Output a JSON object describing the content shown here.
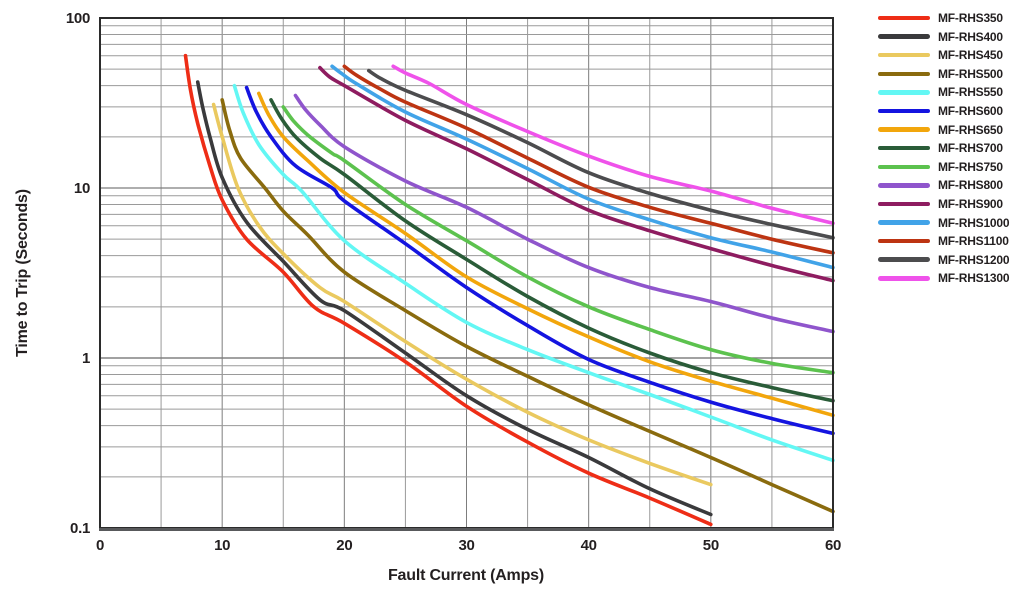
{
  "colors": {
    "background": "#ffffff",
    "grid_minor": "#9a9a9a",
    "grid_major": "#7d7d7d",
    "border": "#2b2b2b",
    "baseline": "#58595b",
    "text": "#231f20"
  },
  "chart_data": {
    "type": "line",
    "title": "",
    "xlabel": "Fault Current (Amps)",
    "ylabel": "Time to Trip (Seconds)",
    "xlim": [
      0,
      60
    ],
    "ylim": [
      0.1,
      100
    ],
    "x_scale": "linear",
    "y_scale": "log",
    "grid": true,
    "x_minor_step": 5,
    "x_major_ticks": [
      0,
      10,
      20,
      30,
      40,
      50,
      60
    ],
    "x_tick_labels": [
      "0",
      "10",
      "20",
      "30",
      "40",
      "50",
      "60"
    ],
    "y_major_ticks": [
      100,
      10,
      1,
      0.1
    ],
    "y_tick_labels": [
      "100",
      "10",
      "1",
      "0.1"
    ],
    "legend_position": "right-outside",
    "series": [
      {
        "name": "MF-RHS350",
        "color": "#ee2d16",
        "points": [
          [
            7,
            60
          ],
          [
            7.4,
            38
          ],
          [
            8,
            24
          ],
          [
            9,
            13.5
          ],
          [
            10,
            8.5
          ],
          [
            12,
            5.0
          ],
          [
            15,
            3.2
          ],
          [
            17.5,
            2.0
          ],
          [
            20,
            1.6
          ],
          [
            25,
            0.95
          ],
          [
            30,
            0.52
          ],
          [
            35,
            0.32
          ],
          [
            40,
            0.21
          ],
          [
            45,
            0.15
          ],
          [
            50,
            0.105
          ]
        ]
      },
      {
        "name": "MF-RHS400",
        "color": "#3a3a3c",
        "points": [
          [
            8,
            42
          ],
          [
            8.4,
            30
          ],
          [
            9,
            20
          ],
          [
            10,
            11.5
          ],
          [
            12,
            6.3
          ],
          [
            15,
            3.7
          ],
          [
            18,
            2.2
          ],
          [
            20,
            1.9
          ],
          [
            25,
            1.07
          ],
          [
            30,
            0.6
          ],
          [
            35,
            0.38
          ],
          [
            40,
            0.26
          ],
          [
            45,
            0.17
          ],
          [
            50,
            0.12
          ]
        ]
      },
      {
        "name": "MF-RHS450",
        "color": "#eac95f",
        "points": [
          [
            9.3,
            31
          ],
          [
            10,
            20
          ],
          [
            11.3,
            10
          ],
          [
            13,
            6
          ],
          [
            15,
            4.1
          ],
          [
            18,
            2.6
          ],
          [
            20,
            2.15
          ],
          [
            25,
            1.25
          ],
          [
            30,
            0.75
          ],
          [
            35,
            0.48
          ],
          [
            40,
            0.33
          ],
          [
            45,
            0.24
          ],
          [
            50,
            0.18
          ]
        ]
      },
      {
        "name": "MF-RHS500",
        "color": "#8a6b0e",
        "points": [
          [
            10,
            33
          ],
          [
            10.6,
            22
          ],
          [
            11.5,
            15
          ],
          [
            13.5,
            10
          ],
          [
            15,
            7.3
          ],
          [
            17,
            5.3
          ],
          [
            20,
            3.2
          ],
          [
            25,
            1.9
          ],
          [
            30,
            1.17
          ],
          [
            35,
            0.78
          ],
          [
            40,
            0.53
          ],
          [
            45,
            0.37
          ],
          [
            50,
            0.26
          ],
          [
            55,
            0.18
          ],
          [
            60,
            0.125
          ]
        ]
      },
      {
        "name": "MF-RHS550",
        "color": "#63f7f4",
        "points": [
          [
            11,
            40
          ],
          [
            11.7,
            28
          ],
          [
            13,
            18
          ],
          [
            15,
            12
          ],
          [
            16.5,
            9.6
          ],
          [
            20,
            4.9
          ],
          [
            25,
            2.75
          ],
          [
            30,
            1.62
          ],
          [
            35,
            1.12
          ],
          [
            40,
            0.82
          ],
          [
            45,
            0.61
          ],
          [
            50,
            0.45
          ],
          [
            55,
            0.33
          ],
          [
            60,
            0.25
          ]
        ]
      },
      {
        "name": "MF-RHS600",
        "color": "#1414e0",
        "points": [
          [
            12,
            39
          ],
          [
            12.8,
            28
          ],
          [
            14,
            20
          ],
          [
            16,
            13.5
          ],
          [
            19,
            10
          ],
          [
            20,
            8.4
          ],
          [
            25,
            4.7
          ],
          [
            30,
            2.6
          ],
          [
            35,
            1.55
          ],
          [
            40,
            0.98
          ],
          [
            45,
            0.72
          ],
          [
            50,
            0.55
          ],
          [
            55,
            0.44
          ],
          [
            60,
            0.36
          ]
        ]
      },
      {
        "name": "MF-RHS650",
        "color": "#f2a60c",
        "points": [
          [
            13,
            36
          ],
          [
            13.8,
            27
          ],
          [
            15,
            20
          ],
          [
            17,
            14.5
          ],
          [
            20,
            9.4
          ],
          [
            25,
            5.4
          ],
          [
            30,
            3.0
          ],
          [
            35,
            1.95
          ],
          [
            40,
            1.33
          ],
          [
            45,
            0.95
          ],
          [
            50,
            0.73
          ],
          [
            55,
            0.58
          ],
          [
            60,
            0.46
          ]
        ]
      },
      {
        "name": "MF-RHS700",
        "color": "#2a5c38",
        "points": [
          [
            14,
            33
          ],
          [
            14.8,
            26
          ],
          [
            16,
            20
          ],
          [
            18,
            15
          ],
          [
            20,
            12
          ],
          [
            25,
            6.4
          ],
          [
            30,
            3.8
          ],
          [
            35,
            2.3
          ],
          [
            40,
            1.5
          ],
          [
            45,
            1.07
          ],
          [
            50,
            0.82
          ],
          [
            55,
            0.67
          ],
          [
            60,
            0.56
          ]
        ]
      },
      {
        "name": "MF-RHS750",
        "color": "#5cc24e",
        "points": [
          [
            15,
            30
          ],
          [
            15.8,
            25
          ],
          [
            17,
            20.5
          ],
          [
            19,
            16
          ],
          [
            20,
            14.5
          ],
          [
            25,
            8.0
          ],
          [
            30,
            4.9
          ],
          [
            35,
            3.0
          ],
          [
            40,
            2.0
          ],
          [
            45,
            1.47
          ],
          [
            50,
            1.12
          ],
          [
            55,
            0.93
          ],
          [
            60,
            0.82
          ]
        ]
      },
      {
        "name": "MF-RHS800",
        "color": "#8f55cc",
        "points": [
          [
            16,
            35
          ],
          [
            16.8,
            29
          ],
          [
            18,
            23.5
          ],
          [
            20,
            17.5
          ],
          [
            25,
            11
          ],
          [
            30,
            7.7
          ],
          [
            35,
            5.0
          ],
          [
            40,
            3.4
          ],
          [
            45,
            2.6
          ],
          [
            50,
            2.15
          ],
          [
            55,
            1.72
          ],
          [
            60,
            1.43
          ]
        ]
      },
      {
        "name": "MF-RHS900",
        "color": "#8e1c60",
        "points": [
          [
            18,
            51
          ],
          [
            18.8,
            45
          ],
          [
            20,
            40
          ],
          [
            25,
            25
          ],
          [
            30,
            17
          ],
          [
            35,
            11.2
          ],
          [
            40,
            7.4
          ],
          [
            45,
            5.6
          ],
          [
            50,
            4.4
          ],
          [
            55,
            3.5
          ],
          [
            60,
            2.85
          ]
        ]
      },
      {
        "name": "MF-RHS1000",
        "color": "#41a3e8",
        "points": [
          [
            19,
            52
          ],
          [
            19.8,
            47
          ],
          [
            21,
            41
          ],
          [
            25,
            28
          ],
          [
            30,
            19.4
          ],
          [
            35,
            13
          ],
          [
            40,
            8.6
          ],
          [
            45,
            6.5
          ],
          [
            50,
            5.1
          ],
          [
            55,
            4.2
          ],
          [
            60,
            3.4
          ]
        ]
      },
      {
        "name": "MF-RHS1100",
        "color": "#bd3412",
        "points": [
          [
            20,
            52
          ],
          [
            21,
            46
          ],
          [
            23,
            38
          ],
          [
            25,
            32
          ],
          [
            30,
            22.5
          ],
          [
            35,
            15
          ],
          [
            40,
            10.1
          ],
          [
            45,
            7.7
          ],
          [
            50,
            6.2
          ],
          [
            55,
            5.0
          ],
          [
            60,
            4.15
          ]
        ]
      },
      {
        "name": "MF-RHS1200",
        "color": "#4c4c4e",
        "points": [
          [
            22,
            49
          ],
          [
            23,
            44
          ],
          [
            25,
            37.5
          ],
          [
            30,
            27
          ],
          [
            35,
            18.5
          ],
          [
            40,
            12.3
          ],
          [
            45,
            9.3
          ],
          [
            50,
            7.4
          ],
          [
            55,
            6.1
          ],
          [
            60,
            5.1
          ]
        ]
      },
      {
        "name": "MF-RHS1300",
        "color": "#ef52ea",
        "points": [
          [
            24,
            52
          ],
          [
            25,
            47.5
          ],
          [
            27,
            41
          ],
          [
            30,
            31
          ],
          [
            35,
            21.5
          ],
          [
            40,
            15.4
          ],
          [
            45,
            11.7
          ],
          [
            50,
            9.6
          ],
          [
            55,
            7.6
          ],
          [
            60,
            6.2
          ]
        ]
      }
    ]
  }
}
